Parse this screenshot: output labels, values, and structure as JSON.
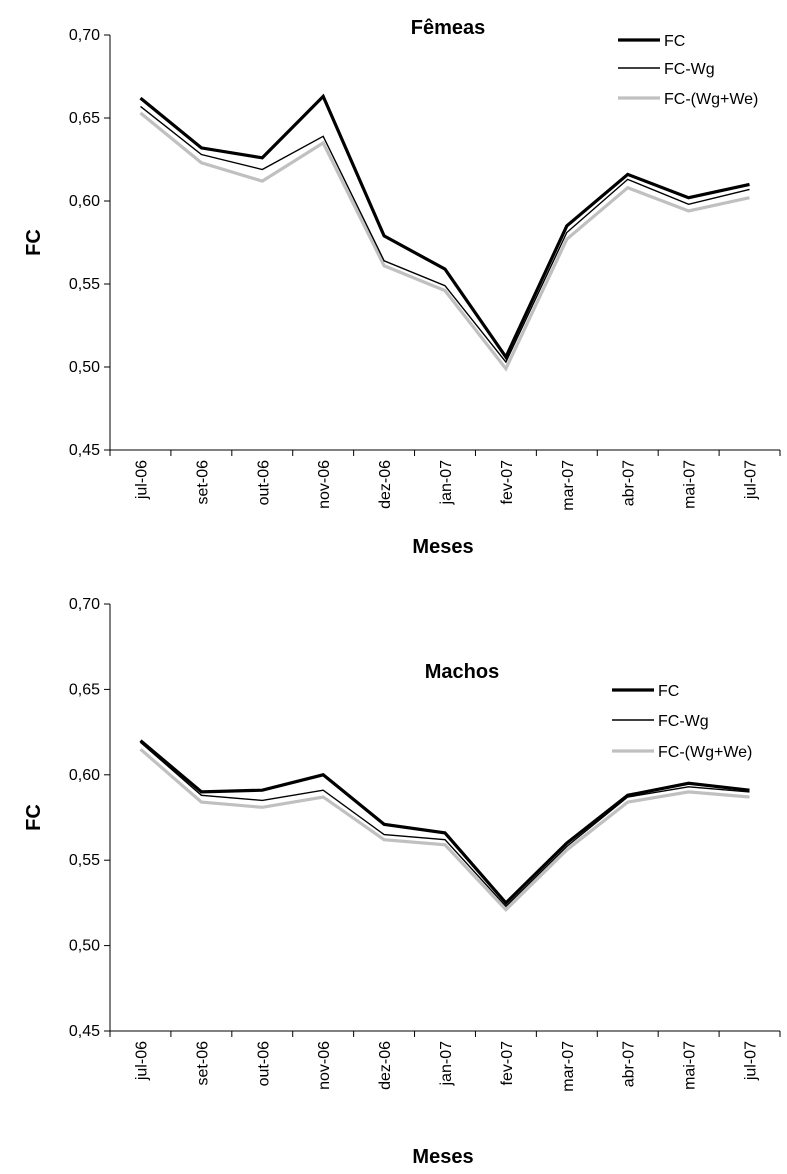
{
  "chart_data": [
    {
      "type": "line",
      "title": "Fêmeas",
      "xlabel": "Meses",
      "ylabel": "FC",
      "ylim": [
        0.45,
        0.7
      ],
      "yticks": [
        "0,45",
        "0,50",
        "0,55",
        "0,60",
        "0,65",
        "0,70"
      ],
      "categories": [
        "jul-06",
        "set-06",
        "out-06",
        "nov-06",
        "dez-06",
        "jan-07",
        "fev-07",
        "mar-07",
        "abr-07",
        "mai-07",
        "jul-07"
      ],
      "grid": false,
      "legend_position": "top-right",
      "series": [
        {
          "name": "FC",
          "color": "#000000",
          "width": "thick",
          "values": [
            0.662,
            0.632,
            0.626,
            0.663,
            0.579,
            0.559,
            0.506,
            0.585,
            0.616,
            0.602,
            0.61
          ]
        },
        {
          "name": "FC-Wg",
          "color": "#000000",
          "width": "thin",
          "values": [
            0.657,
            0.628,
            0.619,
            0.639,
            0.564,
            0.549,
            0.503,
            0.581,
            0.613,
            0.598,
            0.607
          ]
        },
        {
          "name": "FC-(Wg+We)",
          "color": "#c0c0c0",
          "width": "thick",
          "values": [
            0.653,
            0.623,
            0.612,
            0.635,
            0.561,
            0.546,
            0.499,
            0.577,
            0.608,
            0.594,
            0.602
          ]
        }
      ]
    },
    {
      "type": "line",
      "title": "Machos",
      "xlabel": "Meses",
      "ylabel": "FC",
      "ylim": [
        0.45,
        0.7
      ],
      "yticks": [
        "0,45",
        "0,50",
        "0,55",
        "0,60",
        "0,65",
        "0,70"
      ],
      "categories": [
        "jul-06",
        "set-06",
        "out-06",
        "nov-06",
        "dez-06",
        "jan-07",
        "fev-07",
        "mar-07",
        "abr-07",
        "mai-07",
        "jul-07"
      ],
      "grid": false,
      "legend_position": "top-right",
      "series": [
        {
          "name": "FC",
          "color": "#000000",
          "width": "thick",
          "values": [
            0.62,
            0.59,
            0.591,
            0.6,
            0.571,
            0.566,
            0.525,
            0.56,
            0.588,
            0.595,
            0.591
          ]
        },
        {
          "name": "FC-Wg",
          "color": "#000000",
          "width": "thin",
          "values": [
            0.619,
            0.588,
            0.585,
            0.591,
            0.565,
            0.562,
            0.523,
            0.558,
            0.587,
            0.593,
            0.59
          ]
        },
        {
          "name": "FC-(Wg+We)",
          "color": "#c0c0c0",
          "width": "thick",
          "values": [
            0.615,
            0.584,
            0.581,
            0.587,
            0.562,
            0.559,
            0.521,
            0.556,
            0.584,
            0.59,
            0.587
          ]
        }
      ]
    }
  ]
}
